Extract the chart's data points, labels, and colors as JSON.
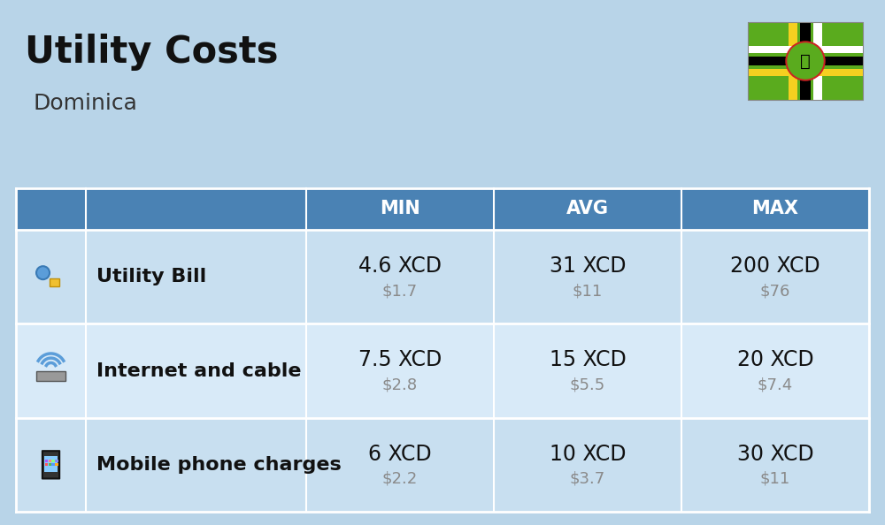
{
  "title": "Utility Costs",
  "subtitle": "Dominica",
  "background_color": "#b8d4e8",
  "header_bg_color": "#4a82b4",
  "header_text_color": "#ffffff",
  "row_color_1": "#c8dff0",
  "row_color_2": "#d8eaf8",
  "cell_divider": "#ffffff",
  "title_fontsize": 30,
  "subtitle_fontsize": 18,
  "header_fontsize": 15,
  "cell_xcd_fontsize": 17,
  "cell_usd_fontsize": 13,
  "label_fontsize": 16,
  "usd_color": "#8a8a8a",
  "label_color": "#111111",
  "xcd_color": "#111111",
  "headers": [
    "MIN",
    "AVG",
    "MAX"
  ],
  "rows": [
    {
      "label": "Utility Bill",
      "min_xcd": "4.6 XCD",
      "min_usd": "$1.7",
      "avg_xcd": "31 XCD",
      "avg_usd": "$11",
      "max_xcd": "200 XCD",
      "max_usd": "$76"
    },
    {
      "label": "Internet and cable",
      "min_xcd": "7.5 XCD",
      "min_usd": "$2.8",
      "avg_xcd": "15 XCD",
      "avg_usd": "$5.5",
      "max_xcd": "20 XCD",
      "max_usd": "$7.4"
    },
    {
      "label": "Mobile phone charges",
      "min_xcd": "6 XCD",
      "min_usd": "$2.2",
      "avg_xcd": "10 XCD",
      "avg_usd": "$3.7",
      "max_xcd": "30 XCD",
      "max_usd": "$11"
    }
  ],
  "flag": {
    "green": "#5aab1e",
    "yellow": "#f5d020",
    "black": "#000000",
    "white": "#ffffff",
    "red": "#cc2222",
    "parrot_body": "#6a9fd8",
    "parrot_head": "#4a7fb0"
  }
}
